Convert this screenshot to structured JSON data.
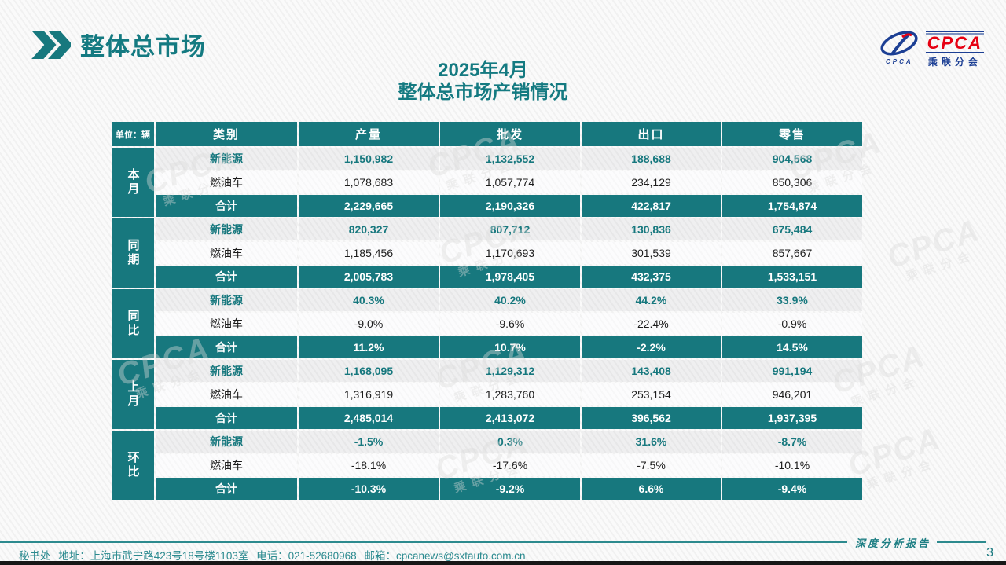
{
  "header": {
    "title": "整体总市场"
  },
  "logo": {
    "cpca": "CPCA",
    "org_name": "乘联分会",
    "mark_caption": "CPCA"
  },
  "subtitle": {
    "line1": "2025年4月",
    "line2": "整体总市场产销情况"
  },
  "brand": {
    "watermark_main": "CPCA",
    "watermark_sub": "乘联分会"
  },
  "table": {
    "unit_label": "单位：辆",
    "columns": [
      "类别",
      "产量",
      "批发",
      "出口",
      "零售"
    ],
    "groups": [
      {
        "label": "本月",
        "rows": [
          {
            "category": "新能源",
            "values": [
              "1,150,982",
              "1,132,552",
              "188,688",
              "904,568"
            ]
          },
          {
            "category": "燃油车",
            "values": [
              "1,078,683",
              "1,057,774",
              "234,129",
              "850,306"
            ]
          },
          {
            "category": "合计",
            "values": [
              "2,229,665",
              "2,190,326",
              "422,817",
              "1,754,874"
            ]
          }
        ]
      },
      {
        "label": "同期",
        "rows": [
          {
            "category": "新能源",
            "values": [
              "820,327",
              "807,712",
              "130,836",
              "675,484"
            ]
          },
          {
            "category": "燃油车",
            "values": [
              "1,185,456",
              "1,170,693",
              "301,539",
              "857,667"
            ]
          },
          {
            "category": "合计",
            "values": [
              "2,005,783",
              "1,978,405",
              "432,375",
              "1,533,151"
            ]
          }
        ]
      },
      {
        "label": "同比",
        "rows": [
          {
            "category": "新能源",
            "values": [
              "40.3%",
              "40.2%",
              "44.2%",
              "33.9%"
            ]
          },
          {
            "category": "燃油车",
            "values": [
              "-9.0%",
              "-9.6%",
              "-22.4%",
              "-0.9%"
            ]
          },
          {
            "category": "合计",
            "values": [
              "11.2%",
              "10.7%",
              "-2.2%",
              "14.5%"
            ]
          }
        ]
      },
      {
        "label": "上月",
        "rows": [
          {
            "category": "新能源",
            "values": [
              "1,168,095",
              "1,129,312",
              "143,408",
              "991,194"
            ]
          },
          {
            "category": "燃油车",
            "values": [
              "1,316,919",
              "1,283,760",
              "253,154",
              "946,201"
            ]
          },
          {
            "category": "合计",
            "values": [
              "2,485,014",
              "2,413,072",
              "396,562",
              "1,937,395"
            ]
          }
        ]
      },
      {
        "label": "环比",
        "rows": [
          {
            "category": "新能源",
            "values": [
              "-1.5%",
              "0.3%",
              "31.6%",
              "-8.7%"
            ]
          },
          {
            "category": "燃油车",
            "values": [
              "-18.1%",
              "-17.6%",
              "-7.5%",
              "-10.1%"
            ]
          },
          {
            "category": "合计",
            "values": [
              "-10.3%",
              "-9.2%",
              "6.6%",
              "-9.4%"
            ]
          }
        ]
      }
    ]
  },
  "footer": {
    "secretariat": "秘书处",
    "address_label": "地址：",
    "address": "上海市武宁路423号18号楼1103室",
    "phone_label": "电话：",
    "phone": "021-52680968",
    "email_label": "邮箱：",
    "email": "cpcanews@sxtauto.com.cn",
    "report_label": "深度分析报告",
    "page_number": "3"
  },
  "colors": {
    "accent_teal": "#17787E",
    "logo_blue": "#1C3F94",
    "logo_red": "#E60012"
  }
}
